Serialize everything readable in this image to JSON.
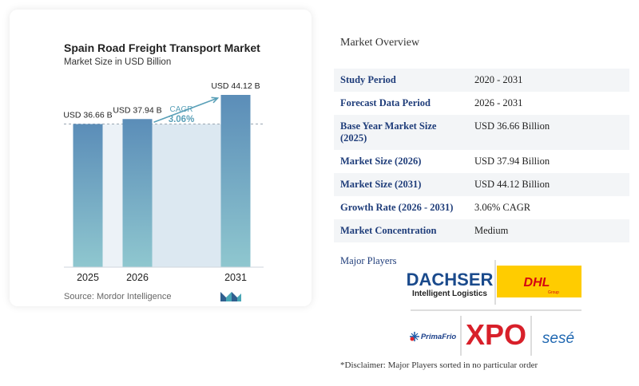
{
  "chart_data": {
    "type": "bar",
    "title": "Spain Road Freight Transport Market",
    "subtitle": "Market Size in USD Billion",
    "categories": [
      "2025",
      "2026",
      "2031"
    ],
    "values": [
      36.66,
      37.94,
      44.12
    ],
    "data_labels": [
      "USD 36.66 B",
      "USD 37.94 B",
      "USD 44.12 B"
    ],
    "ylim": [
      0,
      48
    ],
    "grid": false,
    "annotation": {
      "label": "CAGR",
      "value": "3.06%"
    },
    "source": "Source: Mordor Intelligence",
    "colors": {
      "bar_top": "#5b8db8",
      "bar_bottom": "#8fc7cf",
      "region": "#dce8f1",
      "arrow": "#5aa0b8",
      "cagr_text": "#5aa0b8"
    }
  },
  "overview": {
    "title": "Market Overview",
    "rows": [
      {
        "label": "Study Period",
        "value": "2020 - 2031"
      },
      {
        "label": "Forecast Data Period",
        "value": "2026 - 2031"
      },
      {
        "label": "Base Year Market Size (2025)",
        "value": "USD 36.66 Billion"
      },
      {
        "label": "Market Size (2026)",
        "value": "USD 37.94 Billion"
      },
      {
        "label": "Market Size (2031)",
        "value": "USD 44.12 Billion"
      },
      {
        "label": "Growth Rate (2026 - 2031)",
        "value": "3.06% CAGR"
      },
      {
        "label": "Market Concentration",
        "value": "Medium"
      }
    ]
  },
  "players": {
    "title": "Major Players",
    "dachser": {
      "name": "DACHSER",
      "tagline": "Intelligent Logistics"
    },
    "dhl": {
      "name": "DHL",
      "tagline": "Group"
    },
    "primafrio": {
      "name": "PrimaFrio"
    },
    "xpo": {
      "name": "XPO"
    },
    "sese": {
      "name": "sesé"
    },
    "disclaimer": "*Disclaimer: Major Players sorted in no particular order"
  }
}
